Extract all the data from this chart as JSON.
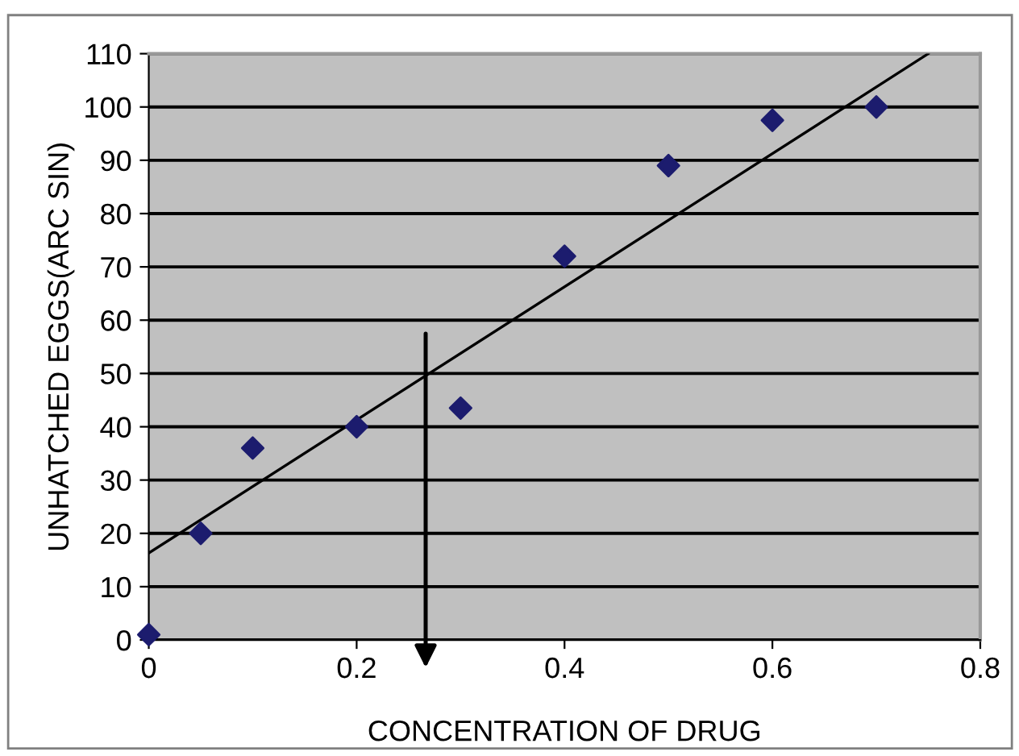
{
  "chart_data": {
    "type": "scatter",
    "xlabel": "CONCENTRATION OF DRUG",
    "ylabel": "UNHATCHED EGGS(ARC SIN)",
    "series": [
      {
        "type": "scatter",
        "color": "#1c1c6e",
        "marker": "diamond",
        "x": [
          0,
          0.05,
          0.1,
          0.2,
          0.3,
          0.4,
          0.5,
          0.6,
          0.7
        ],
        "values": [
          1,
          20,
          36,
          40,
          43.5,
          72,
          89,
          97.5,
          100
        ]
      },
      {
        "type": "line",
        "color": "#000000",
        "marker": "none",
        "x": [
          0,
          0.75
        ],
        "values": [
          16.3,
          110
        ]
      }
    ],
    "xlim": [
      0,
      0.8
    ],
    "xticks": [
      0,
      0.2,
      0.4,
      0.6,
      0.8
    ],
    "ylim": [
      0,
      110
    ],
    "yticks": [
      0,
      10,
      20,
      30,
      40,
      50,
      60,
      70,
      80,
      90,
      100,
      110
    ],
    "grid": "y",
    "legend": false
  }
}
